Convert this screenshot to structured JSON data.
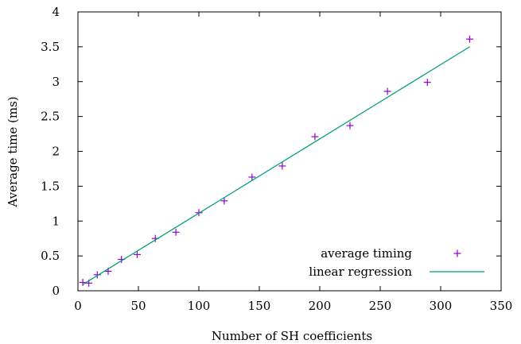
{
  "chart_data": {
    "type": "scatter",
    "xlabel": "Number of SH coefficients",
    "ylabel": "Average time (ms)",
    "xlim": [
      0,
      350
    ],
    "ylim": [
      0,
      4
    ],
    "x_ticks": [
      0,
      50,
      100,
      150,
      200,
      250,
      300,
      350
    ],
    "y_ticks": [
      0,
      0.5,
      1,
      1.5,
      2,
      2.5,
      3,
      3.5,
      4
    ],
    "x_tick_labels": [
      "0",
      "50",
      "100",
      "150",
      "200",
      "250",
      "300",
      "350"
    ],
    "y_tick_labels": [
      "0",
      "0.5",
      "1",
      "1.5",
      "2",
      "2.5",
      "3",
      "3.5",
      "4"
    ],
    "grid": false,
    "legend_position": "bottom-right",
    "series": [
      {
        "name": "average timing",
        "type": "scatter",
        "marker": "plus",
        "color": "#9400d3",
        "x": [
          4,
          9,
          16,
          25,
          36,
          49,
          64,
          81,
          100,
          121,
          144,
          169,
          196,
          225,
          256,
          289,
          324
        ],
        "y": [
          0.12,
          0.11,
          0.23,
          0.28,
          0.45,
          0.52,
          0.75,
          0.84,
          1.12,
          1.29,
          1.63,
          1.79,
          2.21,
          2.37,
          2.86,
          2.99,
          3.61
        ]
      },
      {
        "name": "linear regression",
        "type": "line",
        "color": "#009e73",
        "x": [
          4,
          324
        ],
        "y": [
          0.09,
          3.5
        ]
      }
    ]
  }
}
